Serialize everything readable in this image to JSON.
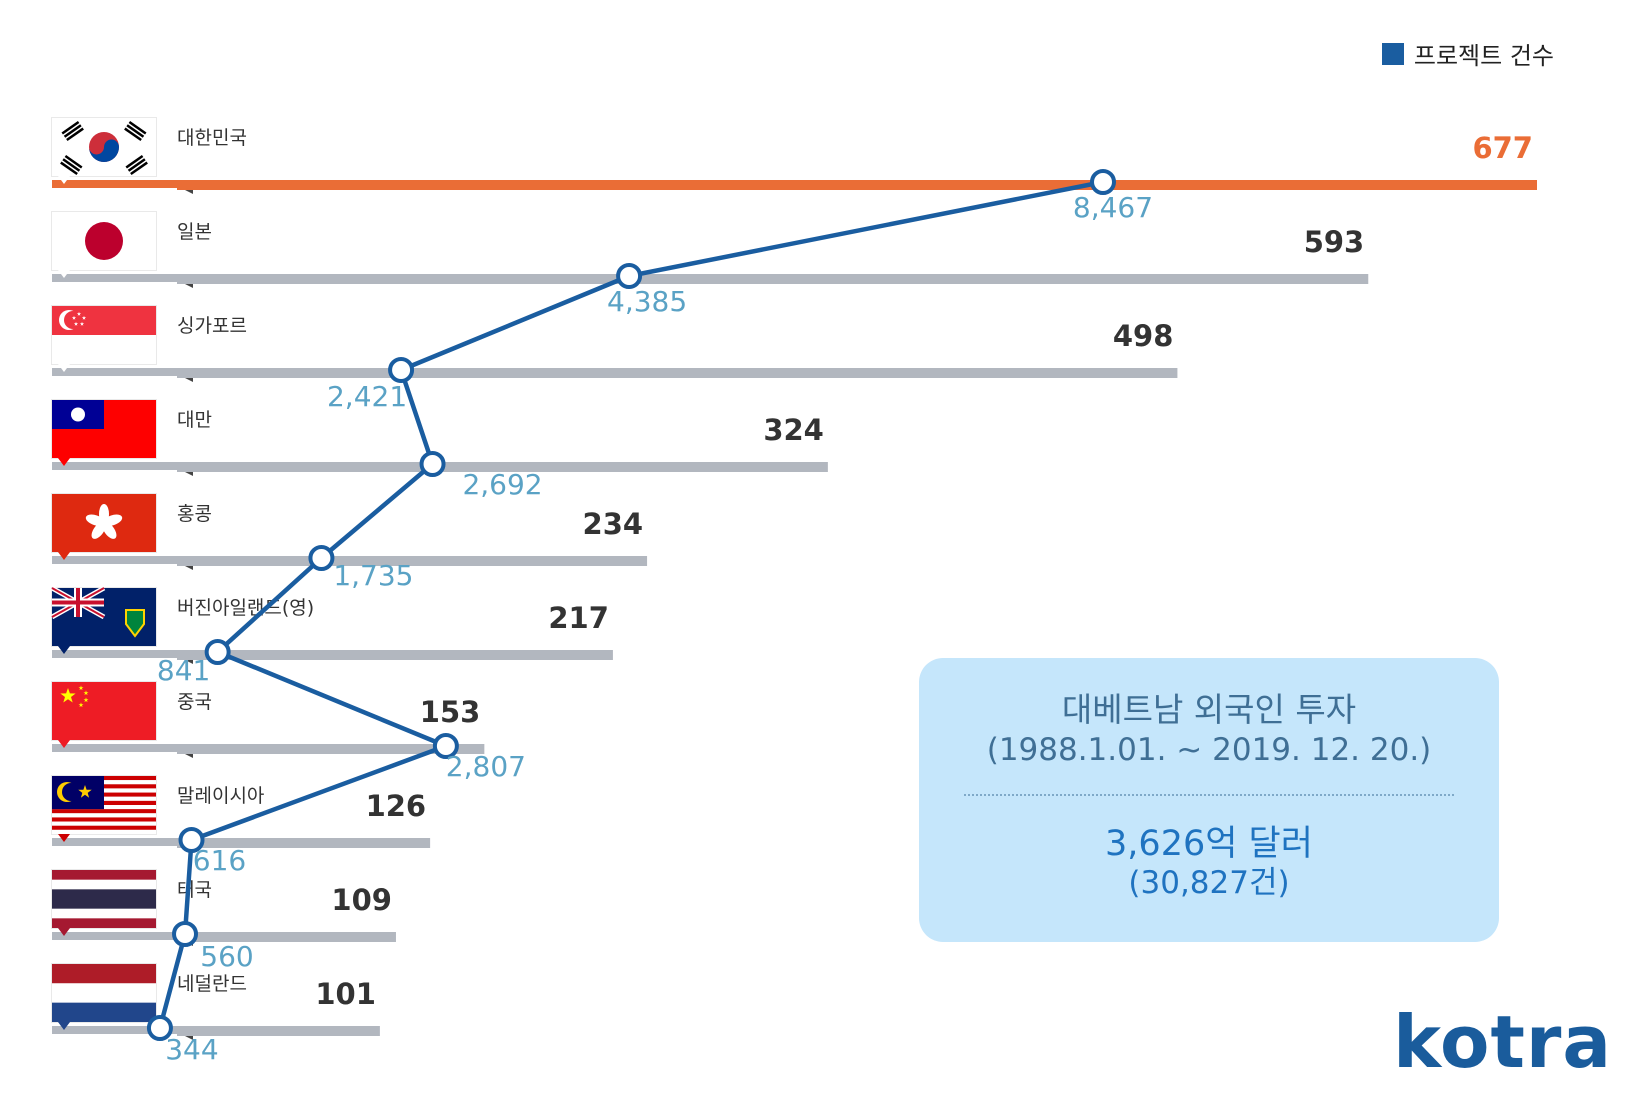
{
  "legend": {
    "label": "프로젝트 건수",
    "color": "#1a5da0"
  },
  "colors": {
    "highlight": "#ea6d36",
    "bar": "#b2b7bf",
    "line": "#1a5da0",
    "investment_label": "#5aa2c5",
    "count_label": "#333333"
  },
  "chart_data": {
    "type": "bar",
    "orientation": "horizontal",
    "categories": [
      "대한민국",
      "일본",
      "싱가포르",
      "대만",
      "홍콩",
      "버진아일랜드(영)",
      "중국",
      "말레이시아",
      "태국",
      "네덜란드"
    ],
    "series": [
      {
        "name": "프로젝트 건수",
        "type": "bar",
        "values": [
          677,
          593,
          498,
          324,
          234,
          217,
          153,
          126,
          109,
          101
        ],
        "labels": [
          "677",
          "593",
          "498",
          "324",
          "234",
          "217",
          "153",
          "126",
          "109",
          "101"
        ]
      },
      {
        "type": "line",
        "values": [
          8467,
          4385,
          2421,
          2692,
          1735,
          841,
          2807,
          616,
          560,
          344
        ],
        "labels": [
          "8,467",
          "4,385",
          "2,421",
          "2,692",
          "1,735",
          "841",
          "2,807",
          "616",
          "560",
          "344"
        ]
      }
    ],
    "flags": [
      "south-korea-flag",
      "japan-flag",
      "singapore-flag",
      "taiwan-flag",
      "hong-kong-flag",
      "british-virgin-islands-flag",
      "china-flag",
      "malaysia-flag",
      "thailand-flag",
      "netherlands-flag"
    ],
    "highlight_category": "대한민국"
  },
  "info_box": {
    "title": "대베트남 외국인 투자",
    "period": "(1988.1.01. ~ 2019. 12. 20.)",
    "amount": "3,626억 달러",
    "count": "(30,827건)"
  },
  "logo": {
    "text": "kotra"
  }
}
